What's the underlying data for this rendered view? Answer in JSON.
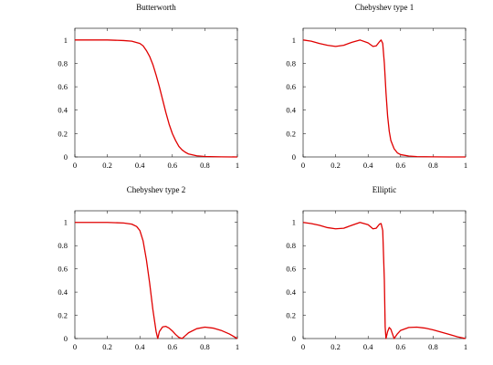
{
  "chart_data": [
    {
      "type": "line",
      "title": "Butterworth",
      "xlabel": "",
      "ylabel": "",
      "xlim": [
        0,
        1
      ],
      "ylim": [
        0,
        1.1
      ],
      "x_ticks": [
        "0",
        "0.2",
        "0.4",
        "0.6",
        "0.8",
        "1"
      ],
      "y_ticks": [
        "0",
        "0.2",
        "0.4",
        "0.6",
        "0.8",
        "1"
      ],
      "grid": false,
      "color": "#e00000",
      "series": [
        {
          "x": [
            0,
            0.1,
            0.2,
            0.3,
            0.35,
            0.4,
            0.42,
            0.44,
            0.46,
            0.48,
            0.5,
            0.52,
            0.54,
            0.56,
            0.58,
            0.6,
            0.62,
            0.64,
            0.66,
            0.68,
            0.7,
            0.75,
            0.8,
            0.9,
            1.0
          ],
          "y": [
            1,
            1,
            1,
            0.995,
            0.99,
            0.97,
            0.95,
            0.91,
            0.86,
            0.79,
            0.7,
            0.6,
            0.49,
            0.38,
            0.28,
            0.2,
            0.14,
            0.09,
            0.06,
            0.04,
            0.025,
            0.01,
            0.004,
            0.001,
            0
          ]
        }
      ]
    },
    {
      "type": "line",
      "title": "Chebyshev type 1",
      "xlabel": "",
      "ylabel": "",
      "xlim": [
        0,
        1
      ],
      "ylim": [
        0,
        1.1
      ],
      "x_ticks": [
        "0",
        "0.2",
        "0.4",
        "0.6",
        "0.8",
        "1"
      ],
      "y_ticks": [
        "0",
        "0.2",
        "0.4",
        "0.6",
        "0.8",
        "1"
      ],
      "grid": false,
      "color": "#e00000",
      "series": [
        {
          "x": [
            0,
            0.05,
            0.1,
            0.15,
            0.2,
            0.25,
            0.3,
            0.35,
            0.4,
            0.43,
            0.45,
            0.47,
            0.48,
            0.49,
            0.5,
            0.51,
            0.52,
            0.53,
            0.54,
            0.56,
            0.58,
            0.6,
            0.65,
            0.7,
            0.8,
            0.9,
            1.0
          ],
          "y": [
            1,
            0.99,
            0.97,
            0.955,
            0.945,
            0.955,
            0.98,
            1.0,
            0.975,
            0.945,
            0.95,
            0.985,
            1.0,
            0.97,
            0.8,
            0.55,
            0.35,
            0.22,
            0.14,
            0.07,
            0.035,
            0.02,
            0.008,
            0.003,
            0.001,
            0,
            0
          ]
        }
      ]
    },
    {
      "type": "line",
      "title": "Chebyshev type 2",
      "xlabel": "",
      "ylabel": "",
      "xlim": [
        0,
        1
      ],
      "ylim": [
        0,
        1.1
      ],
      "x_ticks": [
        "0",
        "0.2",
        "0.4",
        "0.6",
        "0.8",
        "1"
      ],
      "y_ticks": [
        "0",
        "0.2",
        "0.4",
        "0.6",
        "0.8",
        "1"
      ],
      "grid": false,
      "color": "#e00000",
      "series": [
        {
          "x": [
            0,
            0.1,
            0.2,
            0.3,
            0.35,
            0.38,
            0.4,
            0.42,
            0.44,
            0.46,
            0.48,
            0.5,
            0.51,
            0.52,
            0.54,
            0.56,
            0.58,
            0.6,
            0.62,
            0.64,
            0.66,
            0.68,
            0.7,
            0.75,
            0.8,
            0.85,
            0.9,
            0.95,
            1.0
          ],
          "y": [
            1,
            1,
            1,
            0.995,
            0.985,
            0.965,
            0.93,
            0.84,
            0.68,
            0.48,
            0.25,
            0.06,
            0.0,
            0.06,
            0.1,
            0.105,
            0.09,
            0.065,
            0.035,
            0.01,
            0.0,
            0.025,
            0.05,
            0.085,
            0.098,
            0.09,
            0.07,
            0.04,
            0.0
          ]
        }
      ]
    },
    {
      "type": "line",
      "title": "Elliptic",
      "xlabel": "",
      "ylabel": "",
      "xlim": [
        0,
        1
      ],
      "ylim": [
        0,
        1.1
      ],
      "x_ticks": [
        "0",
        "0.2",
        "0.4",
        "0.6",
        "0.8",
        "1"
      ],
      "y_ticks": [
        "0",
        "0.2",
        "0.4",
        "0.6",
        "0.8",
        "1"
      ],
      "grid": false,
      "color": "#e00000",
      "series": [
        {
          "x": [
            0,
            0.05,
            0.1,
            0.15,
            0.2,
            0.25,
            0.3,
            0.35,
            0.4,
            0.43,
            0.45,
            0.47,
            0.48,
            0.49,
            0.5,
            0.505,
            0.51,
            0.52,
            0.53,
            0.54,
            0.55,
            0.56,
            0.58,
            0.6,
            0.65,
            0.7,
            0.75,
            0.8,
            0.85,
            0.9,
            0.95,
            1.0
          ],
          "y": [
            1,
            0.99,
            0.975,
            0.955,
            0.945,
            0.95,
            0.975,
            1.0,
            0.98,
            0.945,
            0.95,
            0.985,
            0.99,
            0.93,
            0.5,
            0.1,
            0.0,
            0.06,
            0.095,
            0.08,
            0.04,
            0.0,
            0.04,
            0.07,
            0.095,
            0.098,
            0.09,
            0.075,
            0.055,
            0.035,
            0.015,
            0.0
          ]
        }
      ]
    }
  ]
}
